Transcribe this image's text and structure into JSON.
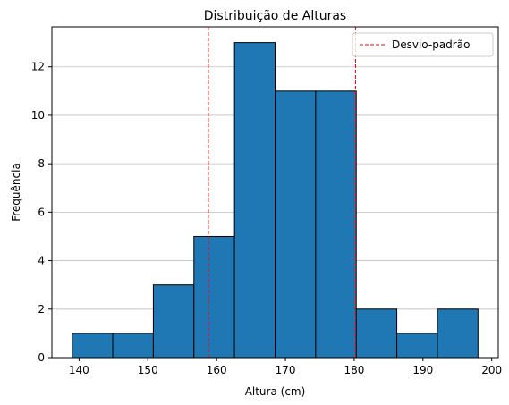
{
  "chart_data": {
    "type": "bar",
    "title": "Distribuição de Alturas",
    "xlabel": "Altura (cm)",
    "ylabel": "Frequência",
    "bins": [
      {
        "start": 139.0,
        "end": 144.9,
        "count": 1
      },
      {
        "start": 144.9,
        "end": 150.8,
        "count": 1
      },
      {
        "start": 150.8,
        "end": 156.7,
        "count": 3
      },
      {
        "start": 156.7,
        "end": 162.6,
        "count": 5
      },
      {
        "start": 162.6,
        "end": 168.5,
        "count": 13
      },
      {
        "start": 168.5,
        "end": 174.4,
        "count": 11
      },
      {
        "start": 174.4,
        "end": 180.3,
        "count": 11
      },
      {
        "start": 180.3,
        "end": 186.2,
        "count": 2
      },
      {
        "start": 186.2,
        "end": 192.1,
        "count": 1
      },
      {
        "start": 192.1,
        "end": 198.0,
        "count": 2
      }
    ],
    "reference_lines": [
      {
        "x": 158.8,
        "label": "Desvio-padrão"
      },
      {
        "x": 180.2,
        "label": "Desvio-padrão"
      }
    ],
    "legend": {
      "label": "Desvio-padrão",
      "placement": "top-right"
    },
    "xlim": [
      136.05,
      200.95
    ],
    "ylim": [
      0,
      13.65
    ],
    "xticks": [
      140,
      150,
      160,
      170,
      180,
      190,
      200
    ],
    "yticks": [
      0,
      2,
      4,
      6,
      8,
      10,
      12
    ],
    "grid": "y",
    "colors": {
      "bar": "#1f77b4",
      "bar_edge": "#000000",
      "reference_line": "#ff0000",
      "grid": "#c0c0c0"
    }
  }
}
